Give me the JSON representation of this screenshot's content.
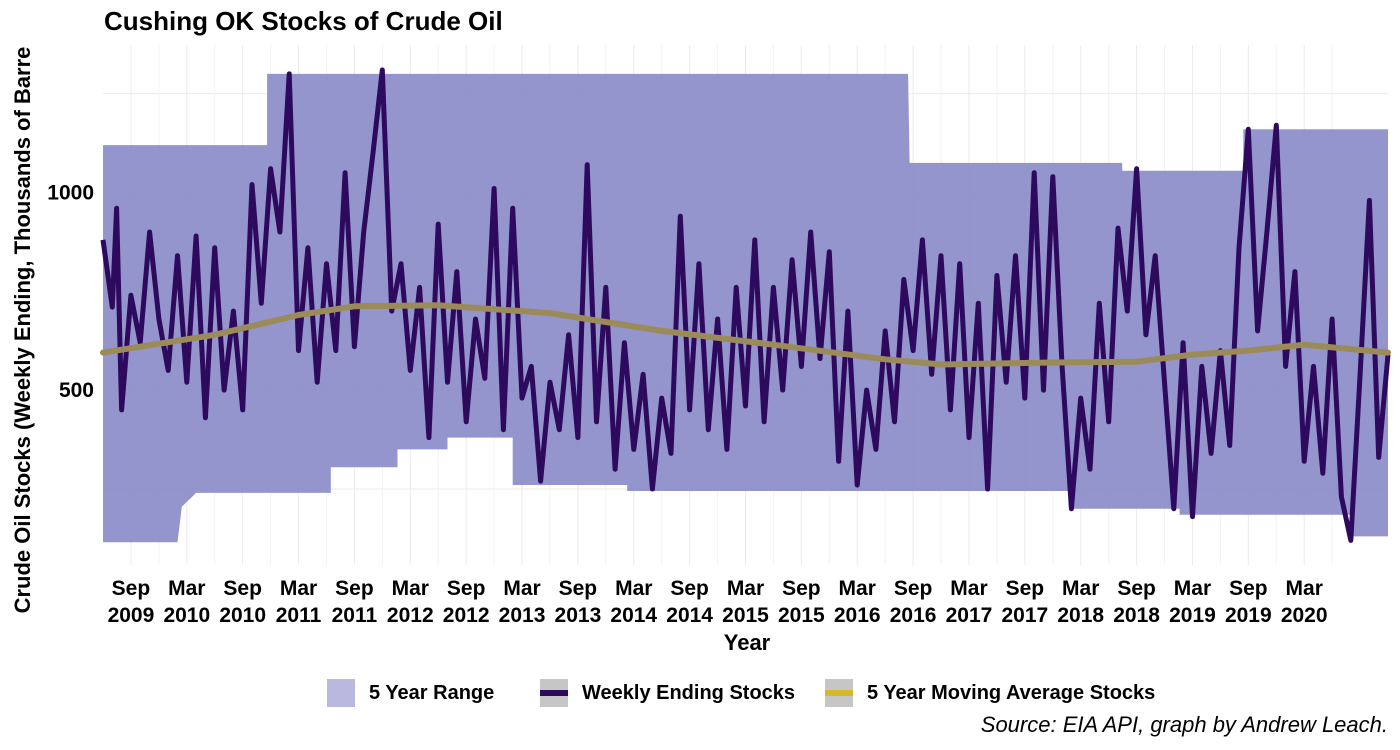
{
  "chart_data": {
    "type": "line",
    "title": "Cushing OK Stocks of Crude Oil",
    "xlabel": "Year",
    "ylabel": "Crude Oil Stocks (Weekly Ending, Thousands of Barre",
    "caption": "Source: EIA API, graph by Andrew Leach.",
    "ylim": [
      0,
      1320
    ],
    "x_range": [
      "2009-06",
      "2020-12"
    ],
    "yticks": [
      500,
      1000
    ],
    "xticks": [
      {
        "date": "2009-09",
        "line1": "Sep",
        "line2": "2009"
      },
      {
        "date": "2010-03",
        "line1": "Mar",
        "line2": "2010"
      },
      {
        "date": "2010-09",
        "line1": "Sep",
        "line2": "2010"
      },
      {
        "date": "2011-03",
        "line1": "Mar",
        "line2": "2011"
      },
      {
        "date": "2011-09",
        "line1": "Sep",
        "line2": "2011"
      },
      {
        "date": "2012-03",
        "line1": "Mar",
        "line2": "2012"
      },
      {
        "date": "2012-09",
        "line1": "Sep",
        "line2": "2012"
      },
      {
        "date": "2013-03",
        "line1": "Mar",
        "line2": "2013"
      },
      {
        "date": "2013-09",
        "line1": "Sep",
        "line2": "2013"
      },
      {
        "date": "2014-03",
        "line1": "Mar",
        "line2": "2014"
      },
      {
        "date": "2014-09",
        "line1": "Sep",
        "line2": "2014"
      },
      {
        "date": "2015-03",
        "line1": "Mar",
        "line2": "2015"
      },
      {
        "date": "2015-09",
        "line1": "Sep",
        "line2": "2015"
      },
      {
        "date": "2016-03",
        "line1": "Mar",
        "line2": "2016"
      },
      {
        "date": "2016-09",
        "line1": "Sep",
        "line2": "2016"
      },
      {
        "date": "2017-03",
        "line1": "Mar",
        "line2": "2017"
      },
      {
        "date": "2017-09",
        "line1": "Sep",
        "line2": "2017"
      },
      {
        "date": "2018-03",
        "line1": "Mar",
        "line2": "2018"
      },
      {
        "date": "2018-09",
        "line1": "Sep",
        "line2": "2018"
      },
      {
        "date": "2019-03",
        "line1": "Mar",
        "line2": "2019"
      },
      {
        "date": "2019-09",
        "line1": "Sep",
        "line2": "2019"
      },
      {
        "date": "2020-03",
        "line1": "Mar",
        "line2": "2020"
      }
    ],
    "grid": true,
    "legend_position": "bottom",
    "series": [
      {
        "name": "5 Year Range",
        "kind": "ribbon",
        "color": "#8c8cc9",
        "points": [
          {
            "x": "2009-06",
            "low": 115,
            "high": 1120
          },
          {
            "x": "2010-02",
            "low": 115,
            "high": 1120
          },
          {
            "x": "2010-02-15",
            "low": 205,
            "high": 1120
          },
          {
            "x": "2010-04",
            "low": 240,
            "high": 1120
          },
          {
            "x": "2010-11-20",
            "low": 240,
            "high": 1120
          },
          {
            "x": "2010-11-20",
            "low": 240,
            "high": 1300
          },
          {
            "x": "2011-06-15",
            "low": 240,
            "high": 1300
          },
          {
            "x": "2011-06-15",
            "low": 305,
            "high": 1300
          },
          {
            "x": "2012-01-20",
            "low": 305,
            "high": 1300
          },
          {
            "x": "2012-01-20",
            "low": 350,
            "high": 1300
          },
          {
            "x": "2012-07",
            "low": 350,
            "high": 1300
          },
          {
            "x": "2012-07",
            "low": 380,
            "high": 1300
          },
          {
            "x": "2013-02",
            "low": 380,
            "high": 1300
          },
          {
            "x": "2013-02",
            "low": 260,
            "high": 1300
          },
          {
            "x": "2014-02-10",
            "low": 260,
            "high": 1300
          },
          {
            "x": "2014-02-10",
            "low": 245,
            "high": 1300
          },
          {
            "x": "2016-08-15",
            "low": 245,
            "high": 1300
          },
          {
            "x": "2016-08-20",
            "low": 245,
            "high": 1075
          },
          {
            "x": "2018-02",
            "low": 245,
            "high": 1075
          },
          {
            "x": "2018-02",
            "low": 200,
            "high": 1075
          },
          {
            "x": "2018-07-15",
            "low": 200,
            "high": 1075
          },
          {
            "x": "2018-07-15",
            "low": 200,
            "high": 1055
          },
          {
            "x": "2019-01-20",
            "low": 200,
            "high": 1055
          },
          {
            "x": "2019-01-20",
            "low": 185,
            "high": 1055
          },
          {
            "x": "2019-08-15",
            "low": 185,
            "high": 1055
          },
          {
            "x": "2019-08-15",
            "low": 185,
            "high": 1160
          },
          {
            "x": "2020-08",
            "low": 185,
            "high": 1160
          },
          {
            "x": "2020-08",
            "low": 130,
            "high": 1160
          },
          {
            "x": "2020-12",
            "low": 130,
            "high": 1160
          }
        ]
      },
      {
        "name": "Weekly Ending Stocks",
        "kind": "line",
        "color": "#2d0a5e",
        "points": [
          {
            "x": "2009-06",
            "y": 880
          },
          {
            "x": "2009-07",
            "y": 710
          },
          {
            "x": "2009-07-15",
            "y": 960
          },
          {
            "x": "2009-08",
            "y": 450
          },
          {
            "x": "2009-09",
            "y": 740
          },
          {
            "x": "2009-10",
            "y": 620
          },
          {
            "x": "2009-11",
            "y": 900
          },
          {
            "x": "2009-12",
            "y": 680
          },
          {
            "x": "2010-01",
            "y": 550
          },
          {
            "x": "2010-02",
            "y": 840
          },
          {
            "x": "2010-03",
            "y": 520
          },
          {
            "x": "2010-04",
            "y": 890
          },
          {
            "x": "2010-05",
            "y": 430
          },
          {
            "x": "2010-06",
            "y": 860
          },
          {
            "x": "2010-07",
            "y": 500
          },
          {
            "x": "2010-08",
            "y": 700
          },
          {
            "x": "2010-09",
            "y": 450
          },
          {
            "x": "2010-10",
            "y": 1020
          },
          {
            "x": "2010-11",
            "y": 720
          },
          {
            "x": "2010-12",
            "y": 1060
          },
          {
            "x": "2011-01",
            "y": 900
          },
          {
            "x": "2011-02",
            "y": 1300
          },
          {
            "x": "2011-03",
            "y": 600
          },
          {
            "x": "2011-04",
            "y": 860
          },
          {
            "x": "2011-05",
            "y": 520
          },
          {
            "x": "2011-06",
            "y": 820
          },
          {
            "x": "2011-07",
            "y": 600
          },
          {
            "x": "2011-08",
            "y": 1050
          },
          {
            "x": "2011-09",
            "y": 610
          },
          {
            "x": "2011-10",
            "y": 900
          },
          {
            "x": "2011-11",
            "y": 1100
          },
          {
            "x": "2011-12",
            "y": 1310
          },
          {
            "x": "2012-01",
            "y": 700
          },
          {
            "x": "2012-02",
            "y": 820
          },
          {
            "x": "2012-03",
            "y": 550
          },
          {
            "x": "2012-04",
            "y": 760
          },
          {
            "x": "2012-05",
            "y": 380
          },
          {
            "x": "2012-06",
            "y": 920
          },
          {
            "x": "2012-07",
            "y": 520
          },
          {
            "x": "2012-08",
            "y": 800
          },
          {
            "x": "2012-09",
            "y": 420
          },
          {
            "x": "2012-10",
            "y": 680
          },
          {
            "x": "2012-11",
            "y": 530
          },
          {
            "x": "2012-12",
            "y": 1010
          },
          {
            "x": "2013-01",
            "y": 400
          },
          {
            "x": "2013-02",
            "y": 960
          },
          {
            "x": "2013-03",
            "y": 480
          },
          {
            "x": "2013-04",
            "y": 560
          },
          {
            "x": "2013-05",
            "y": 270
          },
          {
            "x": "2013-06",
            "y": 520
          },
          {
            "x": "2013-07",
            "y": 400
          },
          {
            "x": "2013-08",
            "y": 640
          },
          {
            "x": "2013-09",
            "y": 380
          },
          {
            "x": "2013-10",
            "y": 1070
          },
          {
            "x": "2013-11",
            "y": 420
          },
          {
            "x": "2013-12",
            "y": 760
          },
          {
            "x": "2014-01",
            "y": 300
          },
          {
            "x": "2014-02",
            "y": 620
          },
          {
            "x": "2014-03",
            "y": 350
          },
          {
            "x": "2014-04",
            "y": 540
          },
          {
            "x": "2014-05",
            "y": 250
          },
          {
            "x": "2014-06",
            "y": 480
          },
          {
            "x": "2014-07",
            "y": 340
          },
          {
            "x": "2014-08",
            "y": 940
          },
          {
            "x": "2014-09",
            "y": 450
          },
          {
            "x": "2014-10",
            "y": 820
          },
          {
            "x": "2014-11",
            "y": 400
          },
          {
            "x": "2014-12",
            "y": 680
          },
          {
            "x": "2015-01",
            "y": 350
          },
          {
            "x": "2015-02",
            "y": 760
          },
          {
            "x": "2015-03",
            "y": 460
          },
          {
            "x": "2015-04",
            "y": 880
          },
          {
            "x": "2015-05",
            "y": 420
          },
          {
            "x": "2015-06",
            "y": 760
          },
          {
            "x": "2015-07",
            "y": 500
          },
          {
            "x": "2015-08",
            "y": 830
          },
          {
            "x": "2015-09",
            "y": 560
          },
          {
            "x": "2015-10",
            "y": 900
          },
          {
            "x": "2015-11",
            "y": 580
          },
          {
            "x": "2015-12",
            "y": 850
          },
          {
            "x": "2016-01",
            "y": 320
          },
          {
            "x": "2016-02",
            "y": 700
          },
          {
            "x": "2016-03",
            "y": 260
          },
          {
            "x": "2016-04",
            "y": 500
          },
          {
            "x": "2016-05",
            "y": 350
          },
          {
            "x": "2016-06",
            "y": 650
          },
          {
            "x": "2016-07",
            "y": 420
          },
          {
            "x": "2016-08",
            "y": 780
          },
          {
            "x": "2016-09",
            "y": 600
          },
          {
            "x": "2016-10",
            "y": 880
          },
          {
            "x": "2016-11",
            "y": 540
          },
          {
            "x": "2016-12",
            "y": 840
          },
          {
            "x": "2017-01",
            "y": 450
          },
          {
            "x": "2017-02",
            "y": 820
          },
          {
            "x": "2017-03",
            "y": 380
          },
          {
            "x": "2017-04",
            "y": 720
          },
          {
            "x": "2017-05",
            "y": 250
          },
          {
            "x": "2017-06",
            "y": 790
          },
          {
            "x": "2017-07",
            "y": 520
          },
          {
            "x": "2017-08",
            "y": 840
          },
          {
            "x": "2017-09",
            "y": 480
          },
          {
            "x": "2017-10",
            "y": 1050
          },
          {
            "x": "2017-11",
            "y": 500
          },
          {
            "x": "2017-12",
            "y": 1040
          },
          {
            "x": "2018-01",
            "y": 560
          },
          {
            "x": "2018-02",
            "y": 200
          },
          {
            "x": "2018-03",
            "y": 480
          },
          {
            "x": "2018-04",
            "y": 300
          },
          {
            "x": "2018-05",
            "y": 720
          },
          {
            "x": "2018-06",
            "y": 420
          },
          {
            "x": "2018-07",
            "y": 910
          },
          {
            "x": "2018-08",
            "y": 700
          },
          {
            "x": "2018-09",
            "y": 1060
          },
          {
            "x": "2018-10",
            "y": 640
          },
          {
            "x": "2018-11",
            "y": 840
          },
          {
            "x": "2018-12",
            "y": 520
          },
          {
            "x": "2019-01",
            "y": 200
          },
          {
            "x": "2019-02",
            "y": 620
          },
          {
            "x": "2019-03",
            "y": 180
          },
          {
            "x": "2019-04",
            "y": 560
          },
          {
            "x": "2019-05",
            "y": 340
          },
          {
            "x": "2019-06",
            "y": 600
          },
          {
            "x": "2019-07",
            "y": 360
          },
          {
            "x": "2019-08",
            "y": 860
          },
          {
            "x": "2019-09",
            "y": 1160
          },
          {
            "x": "2019-10",
            "y": 650
          },
          {
            "x": "2019-11",
            "y": 900
          },
          {
            "x": "2019-12",
            "y": 1170
          },
          {
            "x": "2020-01",
            "y": 560
          },
          {
            "x": "2020-02",
            "y": 800
          },
          {
            "x": "2020-03",
            "y": 320
          },
          {
            "x": "2020-04",
            "y": 560
          },
          {
            "x": "2020-05",
            "y": 290
          },
          {
            "x": "2020-06",
            "y": 680
          },
          {
            "x": "2020-07",
            "y": 230
          },
          {
            "x": "2020-08",
            "y": 120
          },
          {
            "x": "2020-09",
            "y": 540
          },
          {
            "x": "2020-10",
            "y": 980
          },
          {
            "x": "2020-11",
            "y": 330
          },
          {
            "x": "2020-12",
            "y": 590
          }
        ]
      },
      {
        "name": "5 Year Moving Average Stocks",
        "kind": "line",
        "color": "#9b8b59",
        "points": [
          {
            "x": "2009-06",
            "y": 595
          },
          {
            "x": "2010-06",
            "y": 640
          },
          {
            "x": "2011-03",
            "y": 690
          },
          {
            "x": "2011-09",
            "y": 712
          },
          {
            "x": "2012-06",
            "y": 715
          },
          {
            "x": "2013-06",
            "y": 695
          },
          {
            "x": "2014-06",
            "y": 650
          },
          {
            "x": "2015-06",
            "y": 615
          },
          {
            "x": "2016-06",
            "y": 578
          },
          {
            "x": "2016-12",
            "y": 565
          },
          {
            "x": "2017-12",
            "y": 570
          },
          {
            "x": "2018-09",
            "y": 572
          },
          {
            "x": "2019-03",
            "y": 590
          },
          {
            "x": "2019-09",
            "y": 600
          },
          {
            "x": "2020-03",
            "y": 615
          },
          {
            "x": "2020-12",
            "y": 595
          }
        ]
      }
    ]
  },
  "legend": {
    "items": [
      {
        "label": "5 Year Range",
        "color": "#b9b9e0"
      },
      {
        "label": "Weekly Ending Stocks",
        "color": "#2d0a5e"
      },
      {
        "label": "5 Year Moving Average Stocks",
        "color": "#d4b829"
      }
    ]
  }
}
